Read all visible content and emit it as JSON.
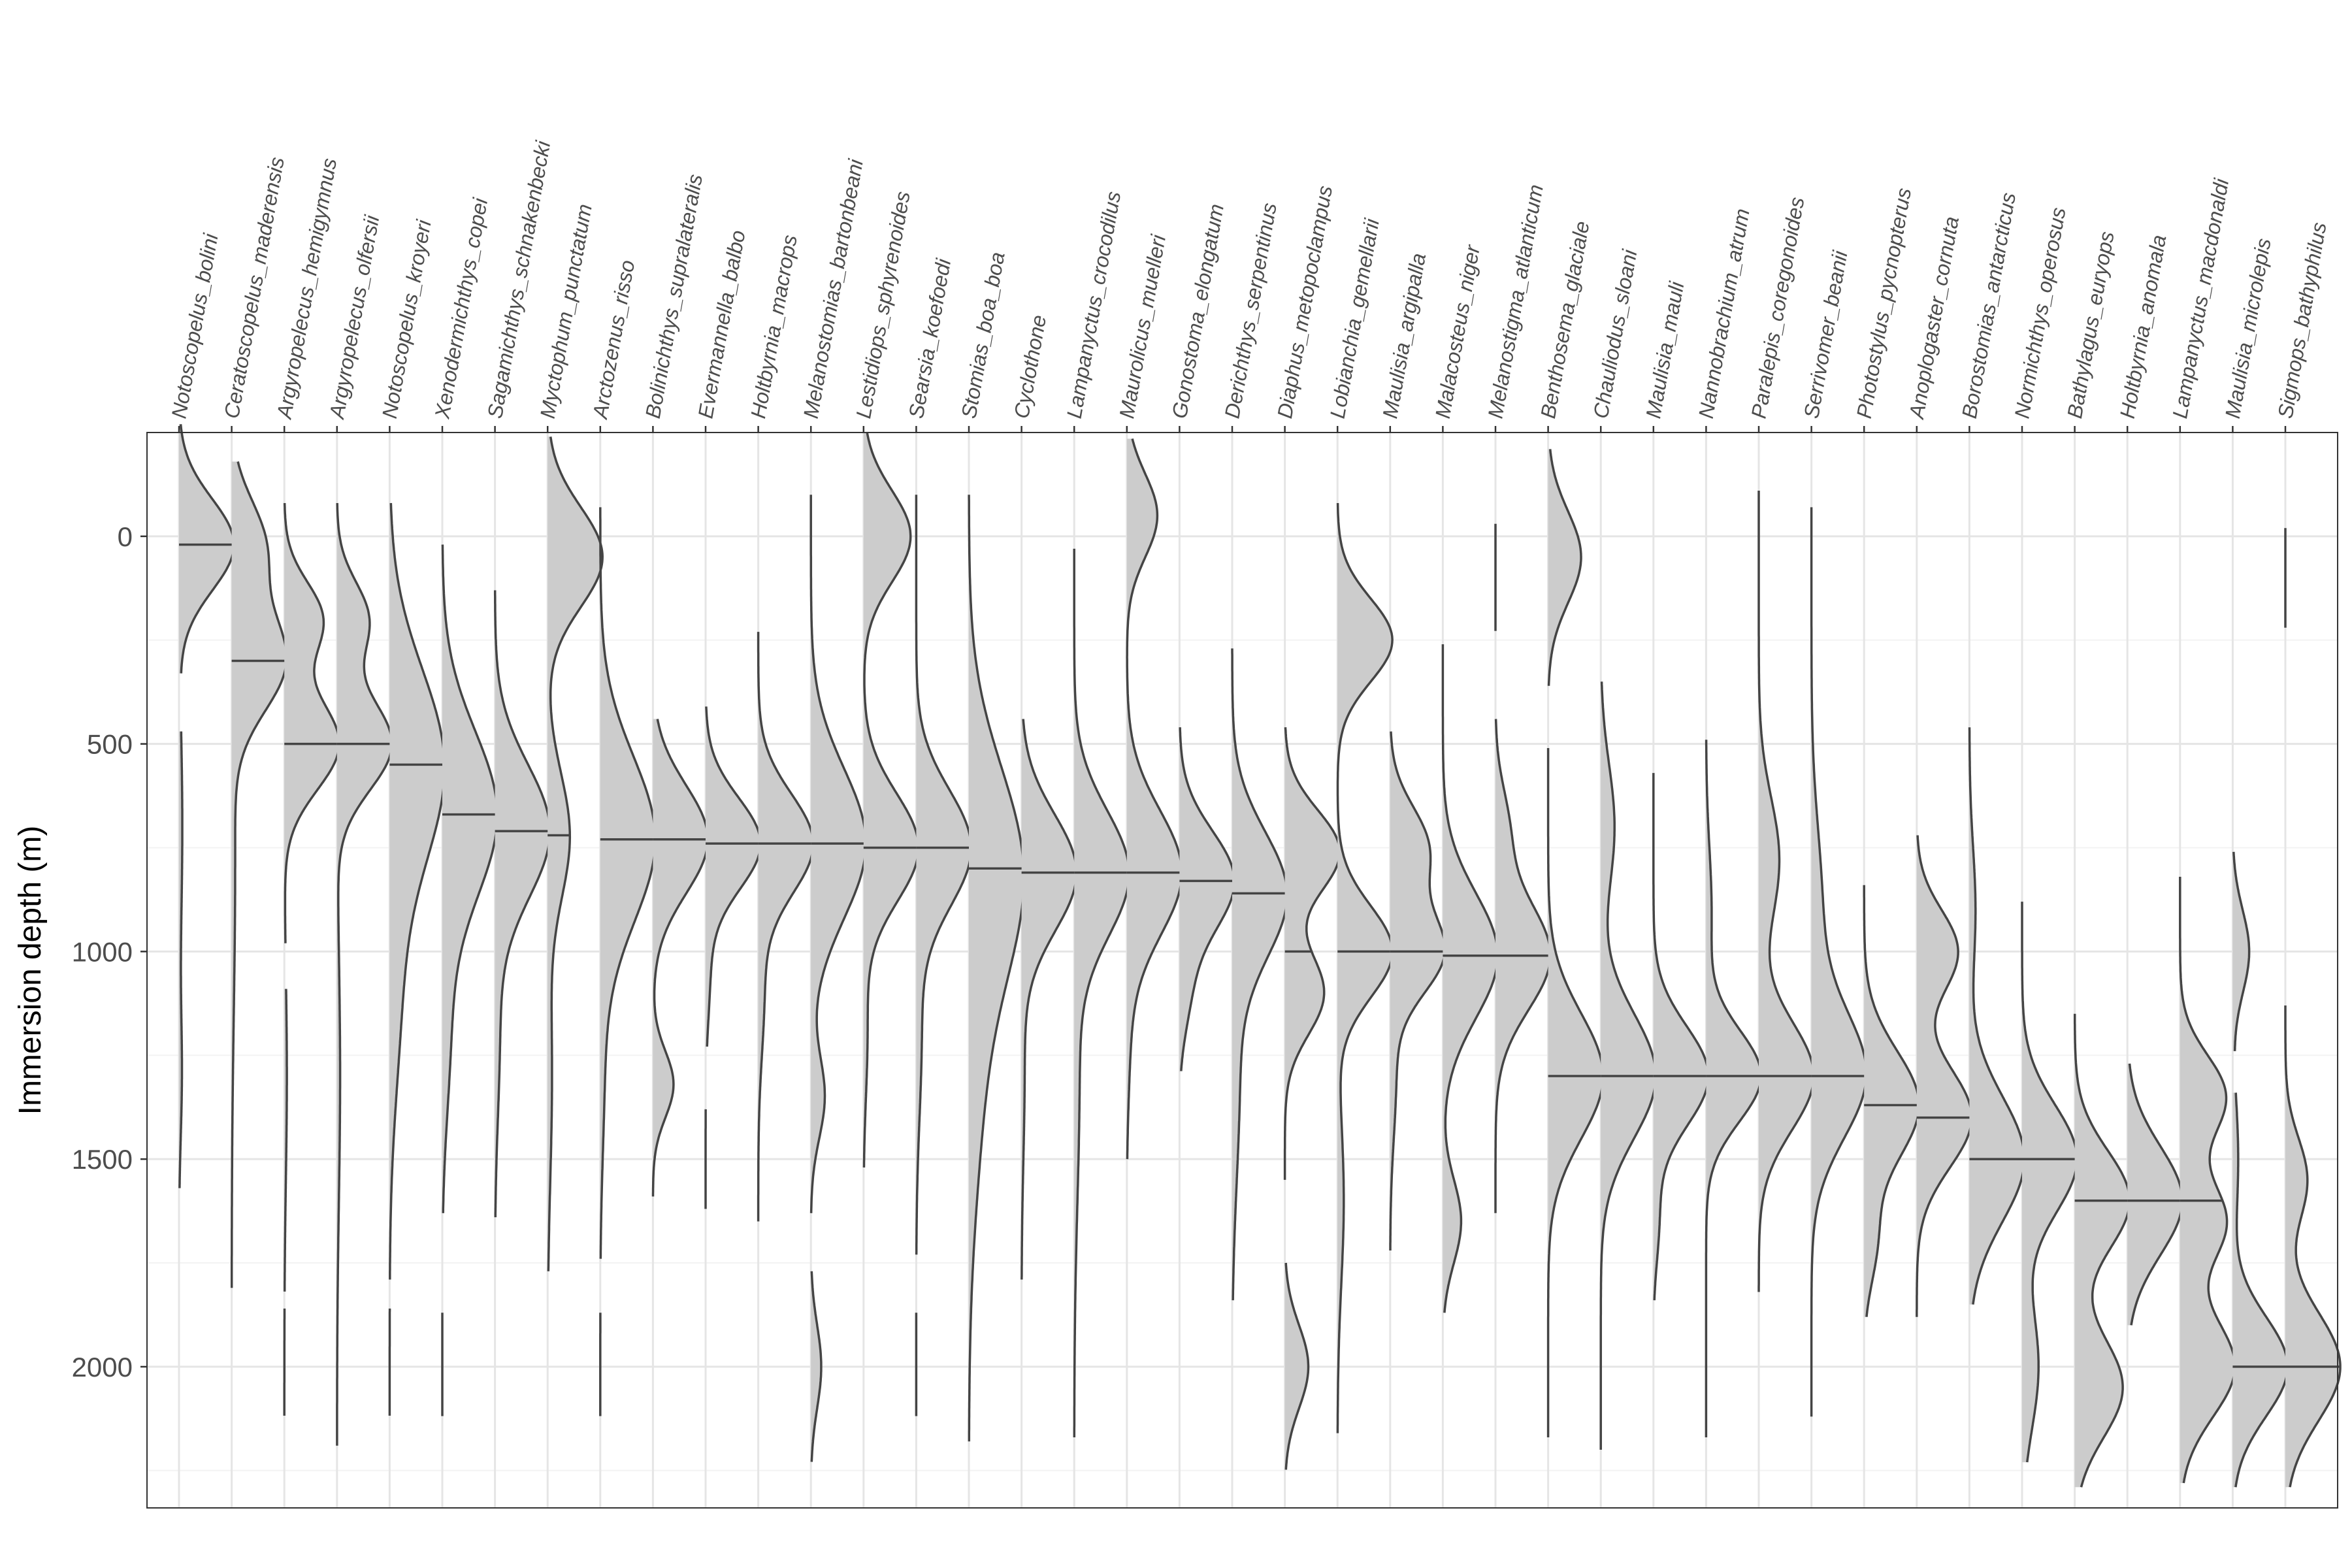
{
  "chart_data": {
    "type": "ridgeline-density",
    "title": "",
    "xlabel": "",
    "ylabel": "Immersion depth (m)",
    "ylim": [
      -250,
      2340
    ],
    "y_reversed": true,
    "y_ticks": [
      0,
      500,
      1000,
      1500,
      2000
    ],
    "grid": true,
    "legend": "none",
    "colors": {
      "fill": "#cccccc",
      "line": "#444444",
      "grid_major": "#e5e5e5",
      "grid_minor": "#f3f3f3",
      "panel_border": "#333333"
    },
    "species": [
      {
        "name": "Notoscopelus_bolini",
        "median": 20,
        "peaks": [
          {
            "d": 20,
            "s": 110,
            "w": 1.0
          },
          {
            "d": 700,
            "s": 250,
            "w": 0.06
          },
          {
            "d": 1300,
            "s": 150,
            "w": 0.05
          }
        ],
        "range": [
          [
            -270,
            330
          ],
          [
            470,
            1570
          ]
        ]
      },
      {
        "name": "Ceratoscopelus_maderensis",
        "median": 300,
        "peaks": [
          {
            "d": 20,
            "s": 110,
            "w": 0.55
          },
          {
            "d": 300,
            "s": 120,
            "w": 0.9
          },
          {
            "d": 800,
            "s": 350,
            "w": 0.06
          }
        ],
        "range": [
          [
            -180,
            1810
          ]
        ]
      },
      {
        "name": "Argyropelecus_hemigymnus",
        "median": 500,
        "peaks": [
          {
            "d": 200,
            "s": 90,
            "w": 0.45
          },
          {
            "d": 500,
            "s": 110,
            "w": 0.65
          },
          {
            "d": 1300,
            "s": 250,
            "w": 0.03
          }
        ],
        "range": [
          [
            -80,
            980
          ],
          [
            1090,
            1820
          ],
          [
            1860,
            2120
          ]
        ]
      },
      {
        "name": "Argyropelecus_olfersii",
        "median": 500,
        "peaks": [
          {
            "d": 200,
            "s": 90,
            "w": 0.4
          },
          {
            "d": 500,
            "s": 110,
            "w": 0.7
          },
          {
            "d": 1300,
            "s": 300,
            "w": 0.04
          }
        ],
        "range": [
          [
            -80,
            2190
          ]
        ]
      },
      {
        "name": "Notoscopelus_kroyeri",
        "median": 550,
        "peaks": [
          {
            "d": 550,
            "s": 230,
            "w": 0.5
          },
          {
            "d": 1100,
            "s": 250,
            "w": 0.1
          }
        ],
        "range": [
          [
            -80,
            1790
          ],
          [
            1860,
            2120
          ]
        ]
      },
      {
        "name": "Xenodermichthys_copei",
        "median": 670,
        "peaks": [
          {
            "d": 670,
            "s": 200,
            "w": 0.7
          },
          {
            "d": 1200,
            "s": 200,
            "w": 0.1
          }
        ],
        "range": [
          [
            20,
            1630
          ],
          [
            1870,
            2120
          ]
        ]
      },
      {
        "name": "Sagamichthys_schnakenbecki",
        "median": 710,
        "peaks": [
          {
            "d": 710,
            "s": 160,
            "w": 0.9
          },
          {
            "d": 1200,
            "s": 200,
            "w": 0.08
          }
        ],
        "range": [
          [
            130,
            1640
          ]
        ]
      },
      {
        "name": "Myctophum_punctatum",
        "median": 720,
        "peaks": [
          {
            "d": 50,
            "s": 120,
            "w": 0.5
          },
          {
            "d": 720,
            "s": 150,
            "w": 0.2
          },
          {
            "d": 1300,
            "s": 250,
            "w": 0.04
          }
        ],
        "range": [
          [
            -240,
            1770
          ]
        ]
      },
      {
        "name": "Arctozenus_risso",
        "median": 730,
        "peaks": [
          {
            "d": 730,
            "s": 200,
            "w": 0.7
          },
          {
            "d": 1300,
            "s": 200,
            "w": 0.05
          }
        ],
        "range": [
          [
            -70,
            1740
          ],
          [
            1870,
            2120
          ]
        ]
      },
      {
        "name": "Bolinichthys_supralateralis",
        "median": 730,
        "peaks": [
          {
            "d": 730,
            "s": 130,
            "w": 0.8
          },
          {
            "d": 1320,
            "s": 80,
            "w": 0.3
          }
        ],
        "range": [
          [
            440,
            1590
          ]
        ]
      },
      {
        "name": "Evermannella_balbo",
        "median": 740,
        "peaks": [
          {
            "d": 740,
            "s": 110,
            "w": 1.0
          },
          {
            "d": 1050,
            "s": 120,
            "w": 0.08
          }
        ],
        "range": [
          [
            410,
            1230
          ],
          [
            1380,
            1620
          ]
        ]
      },
      {
        "name": "Holtbyrnia_macrops",
        "median": 740,
        "peaks": [
          {
            "d": 740,
            "s": 120,
            "w": 0.9
          },
          {
            "d": 1100,
            "s": 150,
            "w": 0.1
          }
        ],
        "range": [
          [
            230,
            1650
          ]
        ]
      },
      {
        "name": "Melanostomias_bartonbeani",
        "median": 740,
        "peaks": [
          {
            "d": 740,
            "s": 180,
            "w": 0.8
          },
          {
            "d": 1350,
            "s": 100,
            "w": 0.2
          },
          {
            "d": 2000,
            "s": 100,
            "w": 0.15
          }
        ],
        "range": [
          [
            -100,
            1630
          ],
          [
            1770,
            2230
          ]
        ]
      },
      {
        "name": "Lestidiops_sphyrenoides",
        "median": 750,
        "peaks": [
          {
            "d": 0,
            "s": 110,
            "w": 0.6
          },
          {
            "d": 750,
            "s": 130,
            "w": 0.7
          },
          {
            "d": 1200,
            "s": 150,
            "w": 0.05
          }
        ],
        "range": [
          [
            -250,
            1520
          ]
        ]
      },
      {
        "name": "Searsia_koefoedi",
        "median": 750,
        "peaks": [
          {
            "d": 750,
            "s": 140,
            "w": 0.8
          },
          {
            "d": 1200,
            "s": 200,
            "w": 0.08
          }
        ],
        "range": [
          [
            -100,
            1730
          ],
          [
            1870,
            2120
          ]
        ]
      },
      {
        "name": "Stomias_boa_boa",
        "median": 800,
        "peaks": [
          {
            "d": 800,
            "s": 250,
            "w": 0.4
          },
          {
            "d": 1300,
            "s": 300,
            "w": 0.1
          }
        ],
        "range": [
          [
            -100,
            2180
          ]
        ]
      },
      {
        "name": "Cyclothone",
        "median": 810,
        "peaks": [
          {
            "d": 810,
            "s": 140,
            "w": 0.9
          },
          {
            "d": 1300,
            "s": 200,
            "w": 0.05
          }
        ],
        "range": [
          [
            440,
            1790
          ]
        ]
      },
      {
        "name": "Lampanyctus_crocodilus",
        "median": 810,
        "peaks": [
          {
            "d": 810,
            "s": 150,
            "w": 0.8
          },
          {
            "d": 1300,
            "s": 300,
            "w": 0.08
          }
        ],
        "range": [
          [
            30,
            2170
          ]
        ]
      },
      {
        "name": "Maurolicus_muelleri",
        "median": 810,
        "peaks": [
          {
            "d": -50,
            "s": 100,
            "w": 0.5
          },
          {
            "d": 810,
            "s": 150,
            "w": 0.9
          },
          {
            "d": 1200,
            "s": 150,
            "w": 0.05
          }
        ],
        "range": [
          [
            -235,
            1500
          ]
        ]
      },
      {
        "name": "Gonostoma_elongatum",
        "median": 830,
        "peaks": [
          {
            "d": 830,
            "s": 120,
            "w": 0.9
          },
          {
            "d": 1100,
            "s": 100,
            "w": 0.15
          }
        ],
        "range": [
          [
            460,
            1290
          ]
        ]
      },
      {
        "name": "Derichthys_serpentinus",
        "median": 860,
        "peaks": [
          {
            "d": 860,
            "s": 150,
            "w": 0.7
          },
          {
            "d": 1300,
            "s": 250,
            "w": 0.1
          }
        ],
        "range": [
          [
            270,
            1840
          ]
        ]
      },
      {
        "name": "Diaphus_metopoclampus",
        "median": 1000,
        "peaks": [
          {
            "d": 760,
            "s": 100,
            "w": 0.7
          },
          {
            "d": 1100,
            "s": 100,
            "w": 0.5
          },
          {
            "d": 2000,
            "s": 100,
            "w": 0.3
          }
        ],
        "range": [
          [
            460,
            1550
          ],
          [
            1750,
            2250
          ]
        ]
      },
      {
        "name": "Lobianchia_gemellarii",
        "median": 1000,
        "peaks": [
          {
            "d": 250,
            "s": 100,
            "w": 0.7
          },
          {
            "d": 1000,
            "s": 110,
            "w": 0.7
          },
          {
            "d": 1600,
            "s": 200,
            "w": 0.08
          }
        ],
        "range": [
          [
            -80,
            2160
          ]
        ]
      },
      {
        "name": "Maulisia_argipalla",
        "median": 1000,
        "peaks": [
          {
            "d": 750,
            "s": 100,
            "w": 0.5
          },
          {
            "d": 1000,
            "s": 100,
            "w": 0.7
          },
          {
            "d": 1300,
            "s": 150,
            "w": 0.08
          }
        ],
        "range": [
          [
            470,
            1720
          ]
        ]
      },
      {
        "name": "Malacosteus_niger",
        "median": 1010,
        "peaks": [
          {
            "d": 1010,
            "s": 150,
            "w": 0.6
          },
          {
            "d": 1650,
            "s": 100,
            "w": 0.2
          }
        ],
        "range": [
          [
            260,
            1870
          ]
        ]
      },
      {
        "name": "Melanostigma_atlanticum",
        "median": 1010,
        "peaks": [
          {
            "d": 1010,
            "s": 130,
            "w": 0.9
          },
          {
            "d": 700,
            "s": 100,
            "w": 0.2
          }
        ],
        "range": [
          [
            -30,
            230
          ],
          [
            440,
            1630
          ]
        ]
      },
      {
        "name": "Benthosema_glaciale",
        "median": 1300,
        "peaks": [
          {
            "d": 50,
            "s": 110,
            "w": 0.3
          },
          {
            "d": 1300,
            "s": 150,
            "w": 0.5
          }
        ],
        "range": [
          [
            -210,
            360
          ],
          [
            510,
            2170
          ]
        ]
      },
      {
        "name": "Chauliodus_sloani",
        "median": 1300,
        "peaks": [
          {
            "d": 700,
            "s": 150,
            "w": 0.2
          },
          {
            "d": 1300,
            "s": 150,
            "w": 0.8
          }
        ],
        "range": [
          [
            350,
            2200
          ]
        ]
      },
      {
        "name": "Maulisia_mauli",
        "median": 1300,
        "peaks": [
          {
            "d": 1300,
            "s": 120,
            "w": 1.0
          },
          {
            "d": 1650,
            "s": 100,
            "w": 0.1
          }
        ],
        "range": [
          [
            570,
            1840
          ]
        ]
      },
      {
        "name": "Nannobrachium_atrum",
        "median": 1300,
        "peaks": [
          {
            "d": 1300,
            "s": 110,
            "w": 1.0
          },
          {
            "d": 900,
            "s": 150,
            "w": 0.1
          }
        ],
        "range": [
          [
            490,
            2170
          ]
        ]
      },
      {
        "name": "Paralepis_coregonoides",
        "median": 1300,
        "peaks": [
          {
            "d": 780,
            "s": 150,
            "w": 0.3
          },
          {
            "d": 1300,
            "s": 130,
            "w": 0.8
          }
        ],
        "range": [
          [
            -110,
            1820
          ]
        ]
      },
      {
        "name": "Serrivomer_beanii",
        "median": 1300,
        "peaks": [
          {
            "d": 1300,
            "s": 150,
            "w": 0.5
          },
          {
            "d": 900,
            "s": 200,
            "w": 0.1
          }
        ],
        "range": [
          [
            -70,
            2120
          ]
        ]
      },
      {
        "name": "Photostylus_pycnopterus",
        "median": 1370,
        "peaks": [
          {
            "d": 1370,
            "s": 130,
            "w": 0.9
          },
          {
            "d": 1700,
            "s": 100,
            "w": 0.2
          }
        ],
        "range": [
          [
            840,
            1880
          ]
        ]
      },
      {
        "name": "Anoplogaster_cornuta",
        "median": 1400,
        "peaks": [
          {
            "d": 1000,
            "s": 100,
            "w": 0.6
          },
          {
            "d": 1400,
            "s": 120,
            "w": 0.8
          }
        ],
        "range": [
          [
            720,
            1880
          ]
        ]
      },
      {
        "name": "Borostomias_antarcticus",
        "median": 1500,
        "peaks": [
          {
            "d": 1500,
            "s": 150,
            "w": 0.9
          },
          {
            "d": 900,
            "s": 150,
            "w": 0.1
          }
        ],
        "range": [
          [
            460,
            1850
          ]
        ]
      },
      {
        "name": "Normichthys_operosus",
        "median": 1500,
        "peaks": [
          {
            "d": 1500,
            "s": 130,
            "w": 1.0
          },
          {
            "d": 2000,
            "s": 150,
            "w": 0.3
          }
        ],
        "range": [
          [
            880,
            2230
          ]
        ]
      },
      {
        "name": "Bathylagus_euryops",
        "median": 1600,
        "peaks": [
          {
            "d": 1600,
            "s": 120,
            "w": 0.8
          },
          {
            "d": 2050,
            "s": 120,
            "w": 0.7
          }
        ],
        "range": [
          [
            1150,
            2290
          ]
        ]
      },
      {
        "name": "Holtbyrnia_anomala",
        "median": 1600,
        "peaks": [
          {
            "d": 1600,
            "s": 130,
            "w": 1.0
          }
        ],
        "range": [
          [
            1270,
            1900
          ]
        ]
      },
      {
        "name": "Lampanyctus_macdonaldi",
        "median": 1600,
        "peaks": [
          {
            "d": 1350,
            "s": 100,
            "w": 0.5
          },
          {
            "d": 1650,
            "s": 100,
            "w": 0.5
          },
          {
            "d": 2000,
            "s": 120,
            "w": 0.6
          }
        ],
        "range": [
          [
            820,
            2280
          ]
        ]
      },
      {
        "name": "Maulisia_microlepis",
        "median": 2000,
        "peaks": [
          {
            "d": 1000,
            "s": 100,
            "w": 0.3
          },
          {
            "d": 2000,
            "s": 120,
            "w": 1.0
          },
          {
            "d": 1500,
            "s": 150,
            "w": 0.1
          }
        ],
        "range": [
          [
            760,
            1240
          ],
          [
            1340,
            2290
          ]
        ]
      },
      {
        "name": "Sigmops_bathyphilus",
        "median": 2000,
        "peaks": [
          {
            "d": 2000,
            "s": 130,
            "w": 1.0
          },
          {
            "d": 1550,
            "s": 100,
            "w": 0.4
          }
        ],
        "range": [
          [
            -20,
            220
          ],
          [
            1130,
            2290
          ]
        ]
      }
    ]
  }
}
